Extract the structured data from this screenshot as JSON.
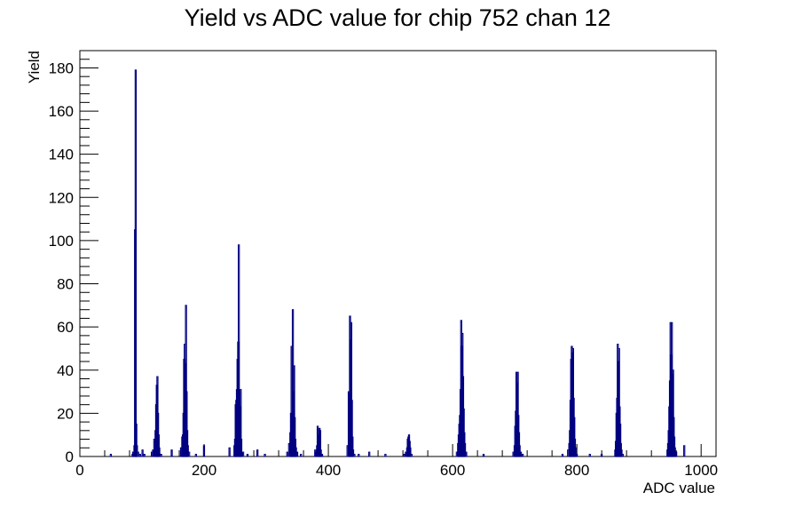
{
  "chart_data": {
    "type": "histogram",
    "title": "Yield vs ADC value for chip 752 chan 12",
    "xlabel": "ADC value",
    "ylabel": "Yield",
    "xlim": [
      0,
      1024
    ],
    "ylim": [
      0,
      188
    ],
    "x_ticks": [
      0,
      200,
      400,
      600,
      800,
      1000
    ],
    "y_ticks": [
      0,
      20,
      40,
      60,
      80,
      100,
      120,
      140,
      160,
      180
    ],
    "grid": false,
    "legend": "none",
    "line_color": "#000080",
    "bins": [
      [
        49,
        1
      ],
      [
        84,
        1
      ],
      [
        85,
        2
      ],
      [
        87,
        5
      ],
      [
        88,
        105
      ],
      [
        89,
        179
      ],
      [
        90,
        15
      ],
      [
        91,
        5
      ],
      [
        93,
        2
      ],
      [
        96,
        1
      ],
      [
        100,
        3
      ],
      [
        103,
        1
      ],
      [
        115,
        2
      ],
      [
        117,
        3
      ],
      [
        119,
        8
      ],
      [
        121,
        12
      ],
      [
        122,
        24
      ],
      [
        123,
        33
      ],
      [
        124,
        37
      ],
      [
        125,
        20
      ],
      [
        126,
        10
      ],
      [
        127,
        4
      ],
      [
        130,
        1
      ],
      [
        147,
        3
      ],
      [
        162,
        4
      ],
      [
        164,
        9
      ],
      [
        165,
        10
      ],
      [
        166,
        20
      ],
      [
        167,
        45
      ],
      [
        168,
        52
      ],
      [
        169,
        43
      ],
      [
        170,
        70
      ],
      [
        171,
        30
      ],
      [
        172,
        12
      ],
      [
        173,
        5
      ],
      [
        175,
        2
      ],
      [
        186,
        1
      ],
      [
        199,
        5
      ],
      [
        240,
        4
      ],
      [
        248,
        5
      ],
      [
        249,
        8
      ],
      [
        250,
        24
      ],
      [
        251,
        26
      ],
      [
        252,
        31
      ],
      [
        253,
        45
      ],
      [
        254,
        53
      ],
      [
        255,
        98
      ],
      [
        256,
        25
      ],
      [
        257,
        23
      ],
      [
        258,
        31
      ],
      [
        259,
        8
      ],
      [
        262,
        2
      ],
      [
        269,
        1
      ],
      [
        285,
        3
      ],
      [
        297,
        1
      ],
      [
        333,
        2
      ],
      [
        336,
        6
      ],
      [
        338,
        11
      ],
      [
        339,
        20
      ],
      [
        340,
        51
      ],
      [
        341,
        19
      ],
      [
        342,
        68
      ],
      [
        343,
        30
      ],
      [
        344,
        42
      ],
      [
        345,
        18
      ],
      [
        346,
        8
      ],
      [
        347,
        4
      ],
      [
        349,
        2
      ],
      [
        355,
        1
      ],
      [
        378,
        3
      ],
      [
        379,
        2
      ],
      [
        381,
        5
      ],
      [
        382,
        14
      ],
      [
        383,
        10
      ],
      [
        384,
        4
      ],
      [
        385,
        13
      ],
      [
        386,
        12
      ],
      [
        387,
        3
      ],
      [
        389,
        1
      ],
      [
        430,
        5
      ],
      [
        432,
        30
      ],
      [
        433,
        29
      ],
      [
        434,
        65
      ],
      [
        435,
        54
      ],
      [
        436,
        62
      ],
      [
        437,
        26
      ],
      [
        438,
        9
      ],
      [
        439,
        3
      ],
      [
        441,
        1
      ],
      [
        448,
        1
      ],
      [
        465,
        2
      ],
      [
        491,
        1
      ],
      [
        521,
        1
      ],
      [
        524,
        2
      ],
      [
        526,
        4
      ],
      [
        527,
        8
      ],
      [
        528,
        9
      ],
      [
        529,
        10
      ],
      [
        530,
        7
      ],
      [
        531,
        4
      ],
      [
        533,
        1
      ],
      [
        606,
        2
      ],
      [
        608,
        6
      ],
      [
        609,
        10
      ],
      [
        610,
        15
      ],
      [
        611,
        19
      ],
      [
        612,
        31
      ],
      [
        613,
        63
      ],
      [
        614,
        51
      ],
      [
        615,
        57
      ],
      [
        616,
        37
      ],
      [
        617,
        22
      ],
      [
        618,
        11
      ],
      [
        619,
        6
      ],
      [
        621,
        2
      ],
      [
        649,
        1
      ],
      [
        697,
        2
      ],
      [
        699,
        5
      ],
      [
        700,
        14
      ],
      [
        701,
        21
      ],
      [
        702,
        39
      ],
      [
        703,
        34
      ],
      [
        704,
        39
      ],
      [
        705,
        19
      ],
      [
        706,
        11
      ],
      [
        707,
        5
      ],
      [
        709,
        2
      ],
      [
        712,
        1
      ],
      [
        776,
        1
      ],
      [
        785,
        3
      ],
      [
        787,
        6
      ],
      [
        788,
        12
      ],
      [
        789,
        26
      ],
      [
        790,
        45
      ],
      [
        791,
        51
      ],
      [
        792,
        48
      ],
      [
        793,
        50
      ],
      [
        794,
        27
      ],
      [
        795,
        18
      ],
      [
        796,
        8
      ],
      [
        797,
        4
      ],
      [
        799,
        1
      ],
      [
        820,
        1
      ],
      [
        839,
        1
      ],
      [
        861,
        3
      ],
      [
        862,
        7
      ],
      [
        863,
        20
      ],
      [
        864,
        27
      ],
      [
        865,
        52
      ],
      [
        866,
        44
      ],
      [
        867,
        50
      ],
      [
        868,
        23
      ],
      [
        869,
        15
      ],
      [
        870,
        6
      ],
      [
        871,
        3
      ],
      [
        873,
        1
      ],
      [
        945,
        3
      ],
      [
        946,
        6
      ],
      [
        947,
        12
      ],
      [
        948,
        23
      ],
      [
        949,
        35
      ],
      [
        950,
        62
      ],
      [
        951,
        47
      ],
      [
        952,
        62
      ],
      [
        953,
        38
      ],
      [
        954,
        40
      ],
      [
        955,
        18
      ],
      [
        956,
        9
      ],
      [
        957,
        4
      ],
      [
        959,
        2
      ],
      [
        972,
        5
      ]
    ]
  }
}
